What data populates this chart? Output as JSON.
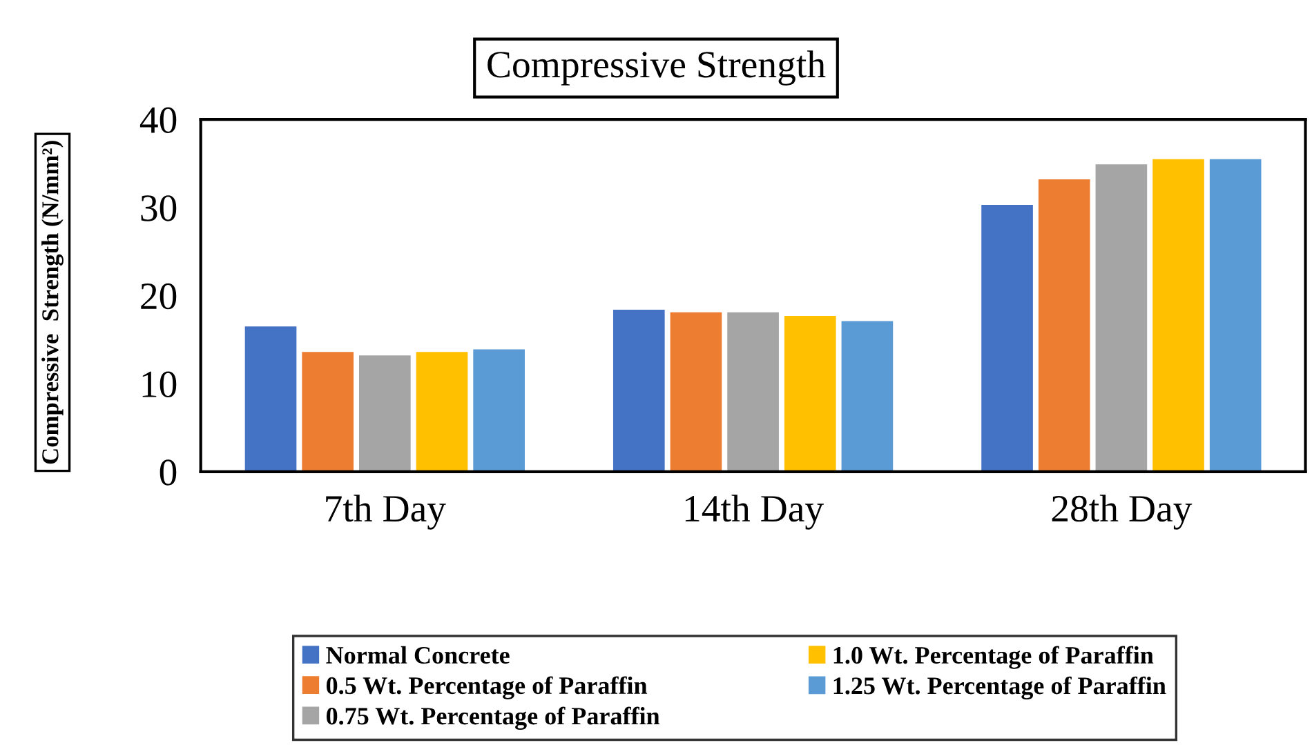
{
  "chart_data": {
    "type": "bar",
    "title": "Compressive Strength",
    "ylabel": "Compressive  Strength (N/mm²)",
    "categories": [
      "7th Day",
      "14th Day",
      "28th Day"
    ],
    "series": [
      {
        "name": "Normal Concrete",
        "color": "#4472c4",
        "values": [
          16.5,
          18.4,
          30.3
        ]
      },
      {
        "name": "0.5 Wt. Percentage of Paraffin",
        "color": "#ed7d31",
        "values": [
          13.6,
          18.1,
          33.2
        ]
      },
      {
        "name": "0.75 Wt. Percentage of Paraffin",
        "color": "#a5a5a5",
        "values": [
          13.2,
          18.1,
          34.9
        ]
      },
      {
        "name": "1.0 Wt. Percentage of Paraffin",
        "color": "#ffc000",
        "values": [
          13.6,
          17.7,
          35.5
        ]
      },
      {
        "name": "1.25 Wt. Percentage of Paraffin",
        "color": "#5b9bd5",
        "values": [
          13.9,
          17.1,
          35.5
        ]
      }
    ],
    "ylim": [
      0,
      40
    ],
    "yticks": [
      0,
      10,
      20,
      30,
      40
    ],
    "grid": false,
    "legend": "bottom"
  }
}
